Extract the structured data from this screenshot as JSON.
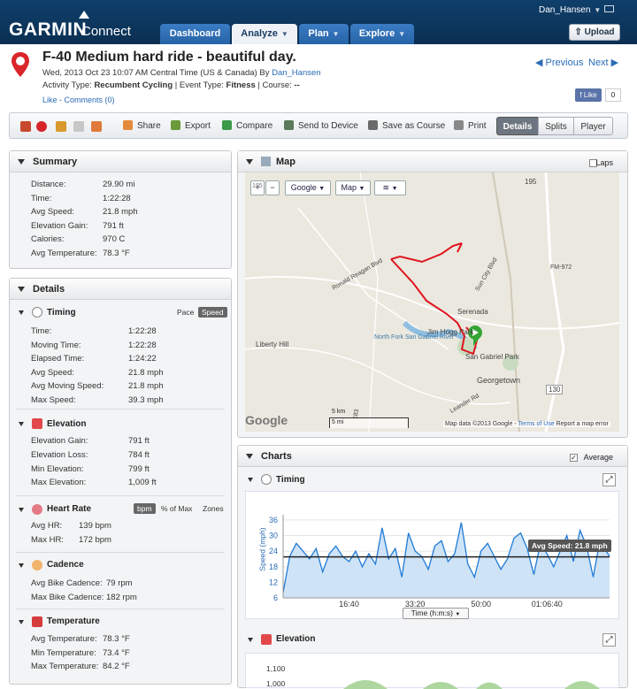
{
  "header": {
    "brand": "GARMIN",
    "brand_sub": "Connect",
    "username": "Dan_Hansen",
    "upload_label": "Upload",
    "tabs": [
      {
        "label": "Dashboard",
        "active": false
      },
      {
        "label": "Analyze",
        "active": true
      },
      {
        "label": "Plan",
        "active": false
      },
      {
        "label": "Explore",
        "active": false
      }
    ]
  },
  "activity": {
    "title": "F-40 Medium hard ride - beautiful day.",
    "date_text": "Wed, 2013 Oct 23 10:07 AM Central Time (US & Canada) By",
    "author": "Dan_Hansen",
    "activity_type_label": "Activity Type:",
    "activity_type": "Recumbent Cycling",
    "event_type_label": "Event Type:",
    "event_type": "Fitness",
    "course_label": "Course:",
    "course": "--",
    "like_comments": "Like - Comments (0)",
    "prev": "Previous",
    "next": "Next",
    "fb_like": "Like",
    "fb_count": "0"
  },
  "toolbar": {
    "share": "Share",
    "export": "Export",
    "compare": "Compare",
    "send": "Send to Device",
    "save_course": "Save as Course",
    "print": "Print",
    "details": "Details",
    "splits": "Splits",
    "player": "Player"
  },
  "summary": {
    "title": "Summary",
    "rows": [
      {
        "label": "Distance:",
        "value": "29.90 mi"
      },
      {
        "label": "Time:",
        "value": "1:22:28"
      },
      {
        "label": "Avg Speed:",
        "value": "21.8 mph"
      },
      {
        "label": "Elevation Gain:",
        "value": "791 ft"
      },
      {
        "label": "Calories:",
        "value": "970 C"
      },
      {
        "label": "Avg Temperature:",
        "value": "78.3 °F"
      }
    ]
  },
  "details": {
    "title": "Details",
    "timing": {
      "title": "Timing",
      "pace": "Pace",
      "speed": "Speed",
      "rows": [
        {
          "label": "Time:",
          "value": "1:22:28"
        },
        {
          "label": "Moving Time:",
          "value": "1:22:28"
        },
        {
          "label": "Elapsed Time:",
          "value": "1:24:22"
        },
        {
          "label": "Avg Speed:",
          "value": "21.8 mph"
        },
        {
          "label": "Avg Moving Speed:",
          "value": "21.8 mph"
        },
        {
          "label": "Max Speed:",
          "value": "39.3 mph"
        }
      ]
    },
    "elevation": {
      "title": "Elevation",
      "rows": [
        {
          "label": "Elevation Gain:",
          "value": "791 ft"
        },
        {
          "label": "Elevation Loss:",
          "value": "784 ft"
        },
        {
          "label": "Min Elevation:",
          "value": "799 ft"
        },
        {
          "label": "Max Elevation:",
          "value": "1,009 ft"
        }
      ]
    },
    "heart_rate": {
      "title": "Heart Rate",
      "bpm": "bpm",
      "pct": "% of Max",
      "zones": "Zones",
      "rows": [
        {
          "label": "Avg HR:",
          "value": "139 bpm"
        },
        {
          "label": "Max HR:",
          "value": "172 bpm"
        }
      ]
    },
    "cadence": {
      "title": "Cadence",
      "rows": [
        {
          "label": "Avg Bike Cadence:",
          "value": "79 rpm"
        },
        {
          "label": "Max Bike Cadence:",
          "value": "182 rpm"
        }
      ]
    },
    "temperature": {
      "title": "Temperature",
      "rows": [
        {
          "label": "Avg Temperature:",
          "value": "78.3 °F"
        },
        {
          "label": "Min Temperature:",
          "value": "73.4 °F"
        },
        {
          "label": "Max Temperature:",
          "value": "84.2 °F"
        }
      ]
    }
  },
  "map": {
    "title": "Map",
    "laps": "Laps",
    "google": "Google",
    "map_type": "Map",
    "labels": [
      "Liberty Hill",
      "Serenada",
      "Jim Hogg Park",
      "North Fork San Gabriel River",
      "San Gabriel Park",
      "Georgetown",
      "Ronald Reagan Blvd",
      "Sun City Blvd",
      "FM-972",
      "Leander Rd",
      "130",
      "195",
      "183"
    ],
    "scale_km": "5 km",
    "scale_mi": "5 mi",
    "attribution": "Map data ©2013 Google - ",
    "terms": "Terms of Use",
    "report": "Report a map error",
    "google_logo": "Google"
  },
  "charts": {
    "title": "Charts",
    "average_label": "Average",
    "timing_title": "Timing",
    "elevation_title": "Elevation",
    "elev_ticks": [
      "1,100",
      "1,000"
    ],
    "x_select": "Time (h:m:s)",
    "avg_tooltip": "Avg Speed: 21.8 mph"
  },
  "chart_data": {
    "type": "area",
    "ylabel": "Speed (mph)",
    "xlabel": "Time (h:m:s)",
    "ylim": [
      6,
      38
    ],
    "yticks": [
      6,
      12,
      18,
      24,
      30,
      36
    ],
    "xticks": [
      "16:40",
      "33:20",
      "50:00",
      "01:06:40"
    ],
    "xtick_seconds": [
      1000,
      2000,
      3000,
      4000
    ],
    "xlim_seconds": [
      0,
      4948
    ],
    "average": 21.8,
    "series": [
      {
        "x": [
          0,
          100,
          200,
          300,
          400,
          500,
          600,
          700,
          800,
          900,
          1000,
          1100,
          1200,
          1300,
          1400,
          1500,
          1600,
          1700,
          1800,
          1900,
          2000,
          2100,
          2200,
          2300,
          2400,
          2500,
          2600,
          2700,
          2800,
          2900,
          3000,
          3100,
          3200,
          3300,
          3400,
          3500,
          3600,
          3700,
          3800,
          3900,
          4000,
          4100,
          4200,
          4300,
          4400,
          4500,
          4600,
          4700,
          4800,
          4948
        ],
        "values": [
          8,
          22,
          27,
          24,
          21,
          25,
          16,
          23,
          26,
          22,
          20,
          24,
          18,
          23,
          19,
          33,
          21,
          25,
          14,
          31,
          24,
          22,
          17,
          26,
          28,
          20,
          23,
          35,
          19,
          14,
          24,
          27,
          22,
          17,
          21,
          29,
          31,
          25,
          15,
          27,
          23,
          18,
          24,
          30,
          20,
          32,
          26,
          14,
          28,
          22
        ]
      }
    ]
  },
  "colors": {
    "accent": "#0b2f52",
    "route": "#e0141e",
    "series": "#1f7bd6",
    "fill": "#cfe3f7"
  }
}
